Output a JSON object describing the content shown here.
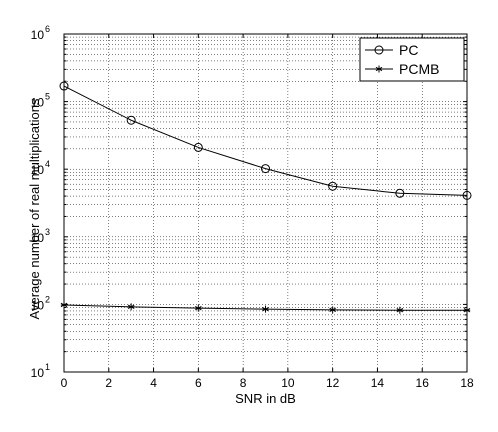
{
  "chart_data": {
    "type": "line",
    "title": "",
    "xlabel": "SNR in dB",
    "ylabel": "Average number of real multiplications",
    "x": [
      0,
      3,
      6,
      9,
      12,
      15,
      18
    ],
    "xlim": [
      0,
      18
    ],
    "ylim": [
      10,
      1000000
    ],
    "yscale": "log",
    "grid": true,
    "legend_position": "top-right",
    "x_ticks": [
      "0",
      "2",
      "4",
      "6",
      "8",
      "10",
      "12",
      "14",
      "16",
      "18"
    ],
    "y_ticks": [
      {
        "base": "10",
        "exp": "1"
      },
      {
        "base": "10",
        "exp": "2"
      },
      {
        "base": "10",
        "exp": "3"
      },
      {
        "base": "10",
        "exp": "4"
      },
      {
        "base": "10",
        "exp": "5"
      },
      {
        "base": "10",
        "exp": "6"
      }
    ],
    "series": [
      {
        "name": "PC",
        "marker": "circle",
        "color": "#000000",
        "values": [
          170000,
          53000,
          21000,
          10200,
          5600,
          4400,
          4100
        ]
      },
      {
        "name": "PCMB",
        "marker": "asterisk",
        "color": "#000000",
        "values": [
          98,
          92,
          88,
          85,
          83,
          82,
          82
        ]
      }
    ]
  }
}
